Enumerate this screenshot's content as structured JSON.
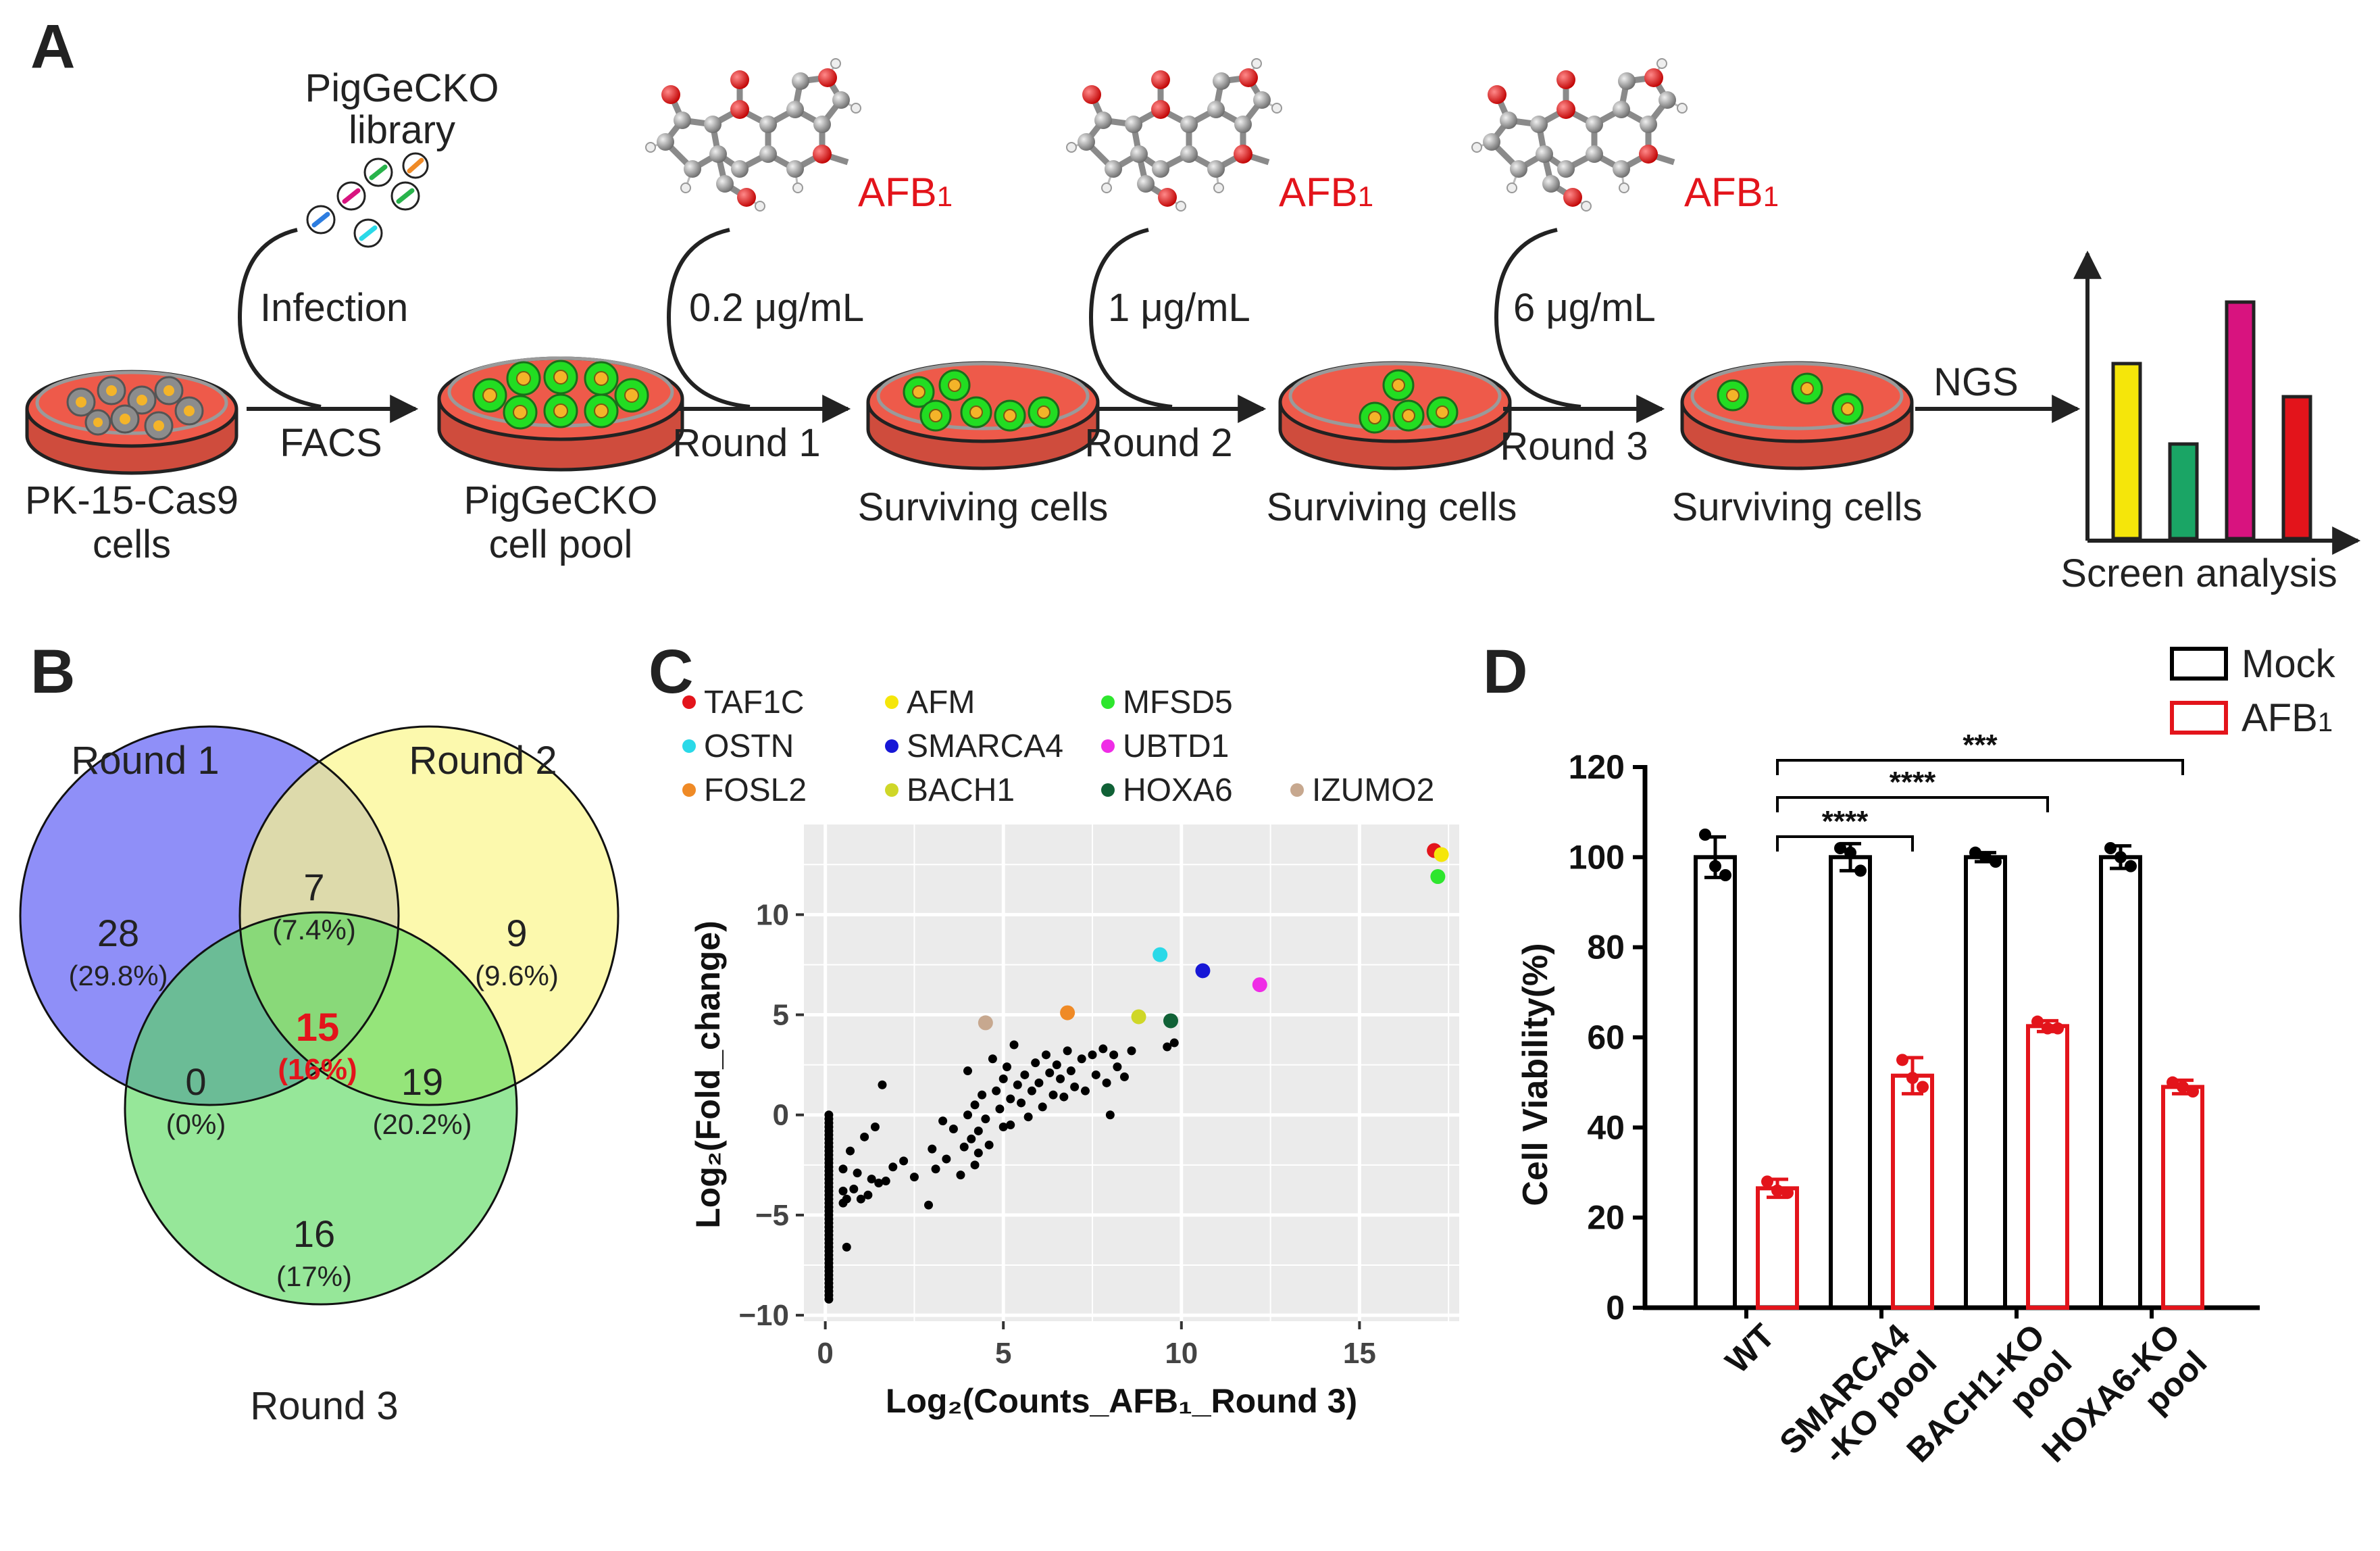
{
  "panels": {
    "a": "A",
    "b": "B",
    "c": "C",
    "d": "D"
  },
  "colors": {
    "dish": "#ee5a4a",
    "cell_green": "#22dd22",
    "nucleus": "#f4b429",
    "afb_red": "#e3141b",
    "venn_r1": "#8f8ff8",
    "venn_r2": "#fbf78e",
    "venn_r3": "#55d85b"
  },
  "panel_a": {
    "library": [
      "PigGeCKO",
      "library"
    ],
    "infection": "Infection",
    "facs": "FACS",
    "start_cells": [
      "PK-15-Cas9",
      "cells"
    ],
    "pool": [
      "PigGeCKO",
      "cell pool"
    ],
    "afb": "AFB",
    "afb_sub": "1",
    "rounds": [
      {
        "dose": "0.2 μg/mL",
        "label": "Round 1",
        "result": "Surviving cells"
      },
      {
        "dose": "1 μg/mL",
        "label": "Round 2",
        "result": "Surviving cells"
      },
      {
        "dose": "6 μg/mL",
        "label": "Round 3",
        "result": "Surviving cells"
      }
    ],
    "ngs": "NGS",
    "analysis": "Screen analysis",
    "analysis_bars": [
      {
        "value": 0.74,
        "color": "#f5e60a"
      },
      {
        "value": 0.4,
        "color": "#1aa565"
      },
      {
        "value": 1.0,
        "color": "#d8137f"
      },
      {
        "value": 0.6,
        "color": "#e3141b"
      }
    ]
  },
  "panel_b": {
    "sets": [
      "Round 1",
      "Round 2",
      "Round 3"
    ],
    "regions": {
      "r1_only": {
        "count": "28",
        "pct": "(29.8%)"
      },
      "r2_only": {
        "count": "9",
        "pct": "(9.6%)"
      },
      "r3_only": {
        "count": "16",
        "pct": "(17%)"
      },
      "r1_r2": {
        "count": "7",
        "pct": "(7.4%)"
      },
      "r1_r3": {
        "count": "0",
        "pct": "(0%)"
      },
      "r2_r3": {
        "count": "19",
        "pct": "(20.2%)"
      },
      "all": {
        "count": "15",
        "pct": "(16%)"
      }
    }
  },
  "chart_data": [
    {
      "type": "scatter",
      "panel": "C",
      "xlabel": "Log₂(Counts_AFB₁_Round 3)",
      "ylabel": "Log₂(Fold_change)",
      "xlim": [
        -0.6,
        17.8
      ],
      "ylim": [
        -10.3,
        14.5
      ],
      "xticks": [
        "0",
        "5",
        "10",
        "15"
      ],
      "yticks": [
        "−10",
        "−5",
        "0",
        "5",
        "10"
      ],
      "highlighted": [
        {
          "name": "TAF1C",
          "x": 17.1,
          "y": 13.2,
          "color": "#e3141b"
        },
        {
          "name": "AFM",
          "x": 17.3,
          "y": 13.0,
          "color": "#f5e60a"
        },
        {
          "name": "MFSD5",
          "x": 17.2,
          "y": 11.9,
          "color": "#2ee62e"
        },
        {
          "name": "OSTN",
          "x": 9.4,
          "y": 8.0,
          "color": "#2ad9e8"
        },
        {
          "name": "SMARCA4",
          "x": 10.6,
          "y": 7.2,
          "color": "#1717d6"
        },
        {
          "name": "UBTD1",
          "x": 12.2,
          "y": 6.5,
          "color": "#ef2ce6"
        },
        {
          "name": "FOSL2",
          "x": 6.8,
          "y": 5.1,
          "color": "#ef8a26"
        },
        {
          "name": "BACH1",
          "x": 8.8,
          "y": 4.9,
          "color": "#cfd728"
        },
        {
          "name": "HOXA6",
          "x": 9.7,
          "y": 4.7,
          "color": "#106136"
        },
        {
          "name": "IZUMO2",
          "x": 4.5,
          "y": 4.6,
          "color": "#c7a88f"
        }
      ],
      "others": [
        [
          0.1,
          -9.2
        ],
        [
          0.1,
          -9.0
        ],
        [
          0.1,
          -8.8
        ],
        [
          0.1,
          -8.6
        ],
        [
          0.1,
          -8.4
        ],
        [
          0.1,
          -8.2
        ],
        [
          0.1,
          -8.0
        ],
        [
          0.1,
          -7.8
        ],
        [
          0.1,
          -7.6
        ],
        [
          0.1,
          -7.4
        ],
        [
          0.1,
          -7.2
        ],
        [
          0.1,
          -7.0
        ],
        [
          0.1,
          -6.8
        ],
        [
          0.1,
          -6.6
        ],
        [
          0.1,
          -6.4
        ],
        [
          0.1,
          -6.2
        ],
        [
          0.1,
          -6.0
        ],
        [
          0.1,
          -5.8
        ],
        [
          0.1,
          -5.6
        ],
        [
          0.1,
          -5.4
        ],
        [
          0.1,
          -5.2
        ],
        [
          0.1,
          -5.0
        ],
        [
          0.1,
          -4.8
        ],
        [
          0.1,
          -4.6
        ],
        [
          0.1,
          -4.4
        ],
        [
          0.1,
          -4.2
        ],
        [
          0.1,
          -4.0
        ],
        [
          0.1,
          -3.8
        ],
        [
          0.1,
          -3.6
        ],
        [
          0.1,
          -3.4
        ],
        [
          0.1,
          -3.2
        ],
        [
          0.1,
          -3.0
        ],
        [
          0.1,
          -2.8
        ],
        [
          0.1,
          -2.6
        ],
        [
          0.1,
          -2.4
        ],
        [
          0.1,
          -2.2
        ],
        [
          0.1,
          -2.0
        ],
        [
          0.1,
          -1.8
        ],
        [
          0.1,
          -1.6
        ],
        [
          0.1,
          -1.4
        ],
        [
          0.1,
          -1.2
        ],
        [
          0.1,
          -1.0
        ],
        [
          0.1,
          -0.8
        ],
        [
          0.1,
          -0.6
        ],
        [
          0.1,
          -0.4
        ],
        [
          0.1,
          -0.2
        ],
        [
          0.1,
          0.0
        ],
        [
          0.5,
          -2.7
        ],
        [
          0.5,
          -3.8
        ],
        [
          0.5,
          -4.4
        ],
        [
          0.6,
          -6.6
        ],
        [
          0.6,
          -4.2
        ],
        [
          0.7,
          -1.8
        ],
        [
          0.8,
          -3.7
        ],
        [
          0.9,
          -2.9
        ],
        [
          1.0,
          -4.2
        ],
        [
          1.1,
          -1.1
        ],
        [
          1.2,
          -4.0
        ],
        [
          1.3,
          -3.2
        ],
        [
          1.4,
          -0.6
        ],
        [
          1.5,
          -3.4
        ],
        [
          1.6,
          1.5
        ],
        [
          1.9,
          -2.6
        ],
        [
          2.5,
          -3.1
        ],
        [
          2.9,
          -4.5
        ],
        [
          3.0,
          -1.7
        ],
        [
          3.1,
          -2.7
        ],
        [
          3.3,
          -0.3
        ],
        [
          3.4,
          -2.2
        ],
        [
          3.6,
          -0.7
        ],
        [
          3.8,
          -3.0
        ],
        [
          3.9,
          -1.6
        ],
        [
          4.0,
          0.0
        ],
        [
          4.0,
          2.2
        ],
        [
          4.1,
          -1.2
        ],
        [
          4.2,
          0.5
        ],
        [
          4.2,
          -2.5
        ],
        [
          4.3,
          -0.8
        ],
        [
          4.3,
          -1.9
        ],
        [
          4.4,
          1.0
        ],
        [
          4.5,
          -0.2
        ],
        [
          4.6,
          -1.5
        ],
        [
          4.7,
          2.8
        ],
        [
          4.8,
          1.2
        ],
        [
          4.9,
          0.3
        ],
        [
          5.0,
          1.8
        ],
        [
          5.0,
          -0.6
        ],
        [
          5.1,
          2.4
        ],
        [
          5.2,
          0.8
        ],
        [
          5.3,
          3.5
        ],
        [
          5.4,
          1.5
        ],
        [
          5.5,
          0.6
        ],
        [
          5.6,
          2.0
        ],
        [
          5.7,
          -0.1
        ],
        [
          5.8,
          1.2
        ],
        [
          5.9,
          2.6
        ],
        [
          6.0,
          1.6
        ],
        [
          6.1,
          0.4
        ],
        [
          6.2,
          3.0
        ],
        [
          6.3,
          2.1
        ],
        [
          6.4,
          1.0
        ],
        [
          6.5,
          2.5
        ],
        [
          6.6,
          1.8
        ],
        [
          6.7,
          0.9
        ],
        [
          6.8,
          3.2
        ],
        [
          6.9,
          2.2
        ],
        [
          7.0,
          1.4
        ],
        [
          7.2,
          2.8
        ],
        [
          7.3,
          1.2
        ],
        [
          7.5,
          3.0
        ],
        [
          7.6,
          2.0
        ],
        [
          7.8,
          3.3
        ],
        [
          7.9,
          1.6
        ],
        [
          8.0,
          0.0
        ],
        [
          8.1,
          3.0
        ],
        [
          8.2,
          2.4
        ],
        [
          8.4,
          1.9
        ],
        [
          8.6,
          3.2
        ],
        [
          9.6,
          3.4
        ],
        [
          9.8,
          3.6
        ],
        [
          1.7,
          -3.3
        ],
        [
          2.2,
          -2.3
        ],
        [
          5.2,
          -0.5
        ]
      ]
    },
    {
      "type": "bar",
      "panel": "D",
      "ylabel": "Cell Viability(%)",
      "ylim": [
        0,
        120
      ],
      "yticks": [
        "0",
        "20",
        "40",
        "60",
        "80",
        "100",
        "120"
      ],
      "categories": [
        "WT",
        "SMARCA4 -KO pool",
        "BACH1-KO pool",
        "HOXA6-KO pool"
      ],
      "category_lines": [
        [
          "WT"
        ],
        [
          "SMARCA4",
          "-KO pool"
        ],
        [
          "BACH1-KO",
          "pool"
        ],
        [
          "HOXA6-KO",
          "pool"
        ]
      ],
      "series": [
        {
          "name": "Mock",
          "color": "#000000",
          "values": [
            100,
            100,
            100,
            100
          ],
          "err": [
            4.5,
            3.0,
            1.0,
            2.5
          ],
          "points": [
            [
              105,
              98,
              96
            ],
            [
              102,
              101,
              97
            ],
            [
              101,
              100,
              99
            ],
            [
              102,
              100,
              98
            ]
          ]
        },
        {
          "name": "AFB",
          "name_sub": "1",
          "color": "#e3141b",
          "values": [
            26.5,
            51.5,
            62.5,
            49.0
          ],
          "err": [
            2.0,
            4.0,
            1.2,
            1.5
          ],
          "points": [
            [
              28,
              26,
              25.5
            ],
            [
              55,
              51,
              49
            ],
            [
              63.5,
              62,
              62
            ],
            [
              50,
              49,
              48
            ]
          ]
        }
      ],
      "significance": [
        {
          "from": 1,
          "to": 1,
          "label": "****"
        },
        {
          "from": 1,
          "to": 2,
          "label": "****"
        },
        {
          "from": 1,
          "to": 3,
          "label": "***"
        }
      ]
    }
  ]
}
